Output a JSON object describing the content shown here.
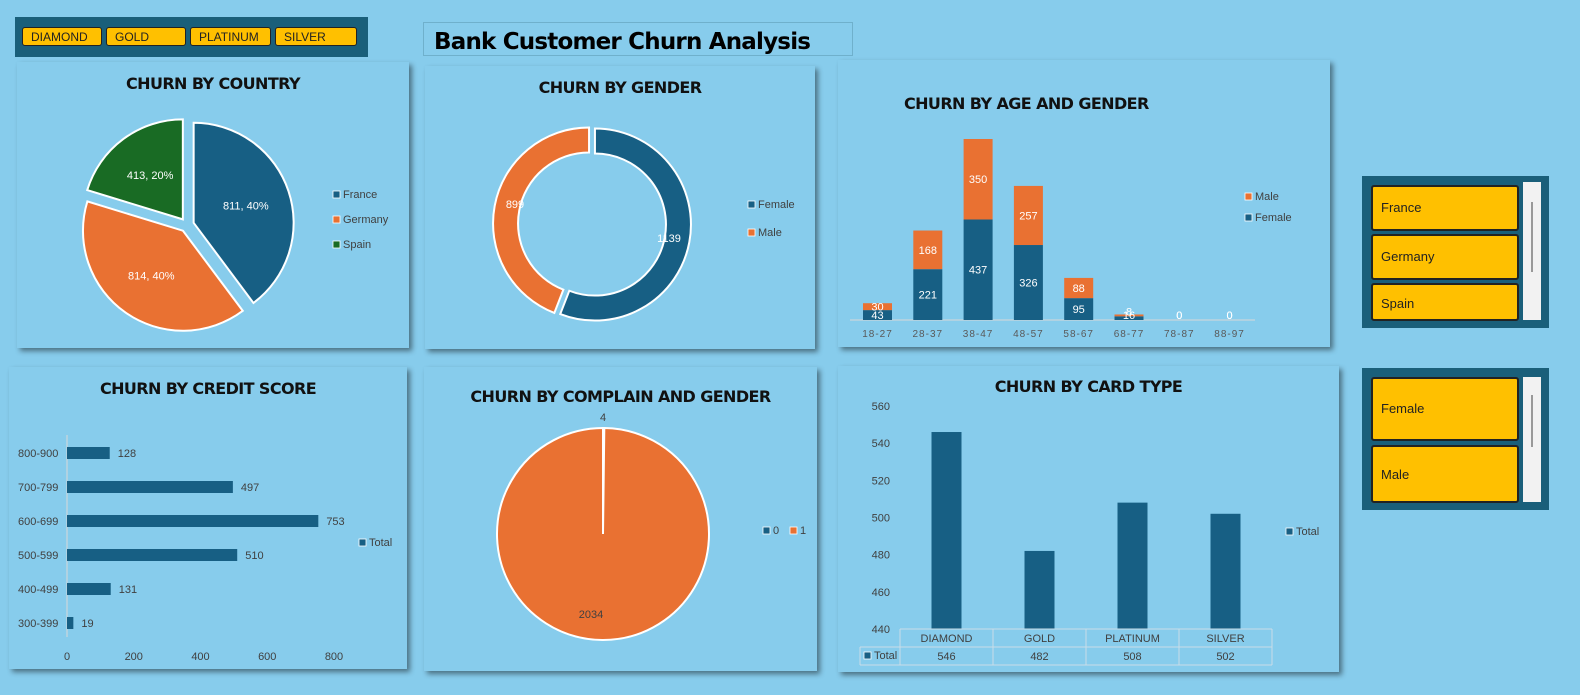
{
  "title": "Bank Customer Churn Analysis",
  "card_slicer": {
    "items": [
      "DIAMOND",
      "GOLD",
      "PLATINUM",
      "SILVER"
    ]
  },
  "country_slicer": {
    "items": [
      "France",
      "Germany",
      "Spain"
    ]
  },
  "gender_slicer": {
    "items": [
      "Female",
      "Male"
    ]
  },
  "colors": {
    "background": "#87ccec",
    "blue": "#175f84",
    "orange": "#e97132",
    "green": "#196b24",
    "slicer_item": "#ffc000",
    "slicer_frame": "#1a5f7a"
  },
  "chart_data": [
    {
      "id": "country",
      "type": "pie",
      "title": "CHURN BY COUNTRY",
      "slices": [
        {
          "name": "France",
          "value": 811,
          "label": "811, 40%"
        },
        {
          "name": "Germany",
          "value": 814,
          "label": "814, 40%"
        },
        {
          "name": "Spain",
          "value": 413,
          "label": "413, 20%"
        }
      ],
      "legend": "right"
    },
    {
      "id": "gender",
      "type": "pie",
      "subtype": "doughnut",
      "title": "CHURN BY GENDER",
      "slices": [
        {
          "name": "Female",
          "value": 1139,
          "label": "1139"
        },
        {
          "name": "Male",
          "value": 899,
          "label": "899"
        }
      ],
      "legend": "right"
    },
    {
      "id": "age",
      "type": "bar",
      "subtype": "stacked",
      "title": "CHURN BY AGE AND GENDER",
      "categories": [
        "18-27",
        "28-37",
        "38-47",
        "48-57",
        "58-67",
        "68-77",
        "78-87",
        "88-97"
      ],
      "series": [
        {
          "name": "Female",
          "values": [
            43,
            221,
            437,
            326,
            95,
            16,
            0,
            0
          ]
        },
        {
          "name": "Male",
          "values": [
            30,
            168,
            350,
            257,
            88,
            8,
            0,
            0
          ]
        }
      ],
      "legend_order": [
        "Male",
        "Female"
      ],
      "legend": "right"
    },
    {
      "id": "credit",
      "type": "bar",
      "orientation": "horizontal",
      "title": "CHURN BY CREDIT SCORE",
      "categories": [
        "800-900",
        "700-799",
        "600-699",
        "500-599",
        "400-499",
        "300-399"
      ],
      "series": [
        {
          "name": "Total",
          "values": [
            128,
            497,
            753,
            510,
            131,
            19
          ]
        }
      ],
      "x_ticks": [
        "0",
        "200",
        "400",
        "600",
        "800"
      ],
      "xlim": [
        0,
        960
      ],
      "legend": "right"
    },
    {
      "id": "complain",
      "type": "pie",
      "title": "CHURN BY COMPLAIN AND GENDER",
      "slices": [
        {
          "name": "0",
          "value": 4,
          "label": "4"
        },
        {
          "name": "1",
          "value": 2034,
          "label": "2034"
        }
      ],
      "legend": "right"
    },
    {
      "id": "card",
      "type": "bar",
      "title": "CHURN BY CARD TYPE",
      "categories": [
        "DIAMOND",
        "GOLD",
        "PLATINUM",
        "SILVER"
      ],
      "series": [
        {
          "name": "Total",
          "values": [
            546,
            482,
            508,
            502
          ]
        }
      ],
      "y_ticks": [
        "560",
        "540",
        "520",
        "500",
        "480",
        "460",
        "440"
      ],
      "ylim": [
        440,
        560
      ],
      "data_table": true,
      "legend": "right"
    }
  ]
}
